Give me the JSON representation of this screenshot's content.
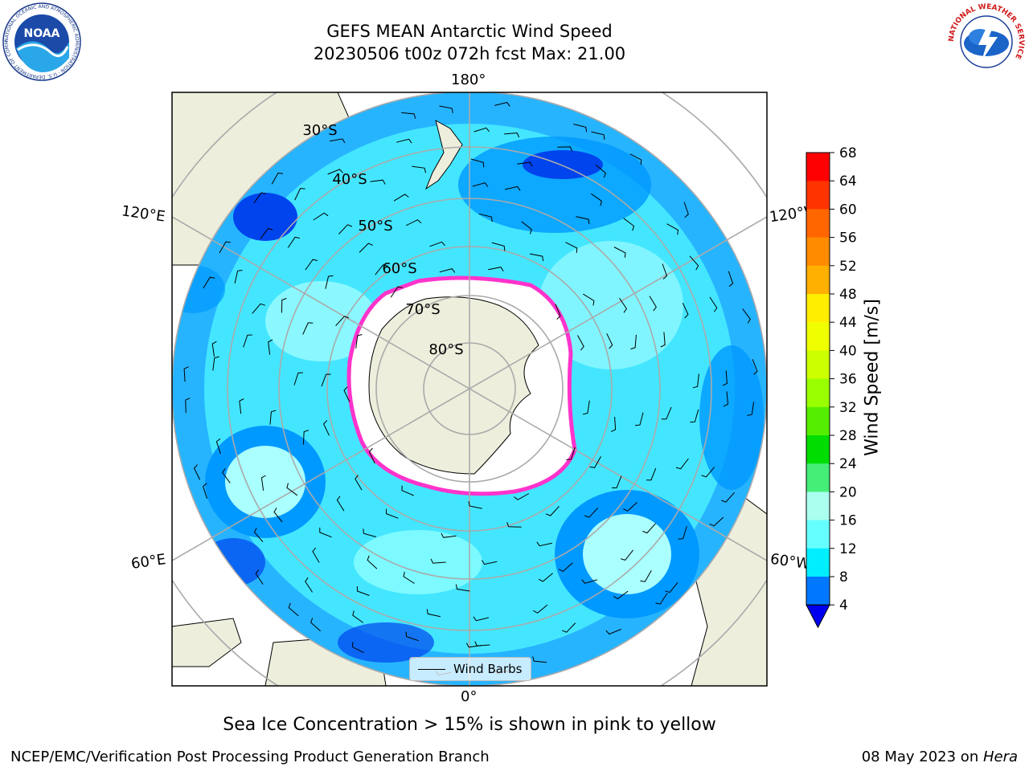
{
  "title": {
    "line1": "GEFS MEAN Antarctic Wind Speed",
    "line2": "20230506 t00z 072h fcst   Max: 21.00"
  },
  "map": {
    "longitude_labels": {
      "top": "180°",
      "upper_left": "120°E",
      "upper_right": "120°W",
      "lower_left": "60°E",
      "lower_right": "60°W",
      "bottom": "0°"
    },
    "latitude_labels": [
      "30°S",
      "40°S",
      "50°S",
      "60°S",
      "70°S",
      "80°S"
    ],
    "legend": "Wind Barbs",
    "colors": {
      "ocean_light": "#8cffff",
      "ocean_mid": "#44e6ff",
      "ocean_deep": "#0099ff",
      "ocean_darkest": "#0044ee",
      "land": "#eeeedd",
      "ice": "#ffffff",
      "ice_edge": "#ff33cc"
    }
  },
  "colorbar": {
    "label": "Wind Speed [m/s]",
    "ticks": [
      "68",
      "64",
      "60",
      "56",
      "52",
      "48",
      "44",
      "40",
      "36",
      "32",
      "28",
      "24",
      "20",
      "16",
      "12",
      "8",
      "4"
    ],
    "colors": [
      "#ff0000",
      "#ff3300",
      "#ff6600",
      "#ff8c00",
      "#ffb000",
      "#ffee00",
      "#f0ff00",
      "#ccff00",
      "#99ff00",
      "#55ee00",
      "#00dd00",
      "#44ee77",
      "#aaffee",
      "#66ffff",
      "#00eeff",
      "#0077ff",
      "#0000ee"
    ]
  },
  "caption": "Sea Ice Concentration > 15% is shown in pink to yellow",
  "footer": {
    "left": "NCEP/EMC/Verification Post Processing Product Generation Branch",
    "right_date": "08 May 2023 on ",
    "right_host": "Hera"
  },
  "logos": {
    "noaa": "NOAA",
    "noaa_ring": "NATIONAL OCEANIC AND ATMOSPHERIC ADMINISTRATION · U.S. DEPARTMENT OF COMMERCE",
    "nws_ring": "NATIONAL WEATHER SERVICE"
  }
}
